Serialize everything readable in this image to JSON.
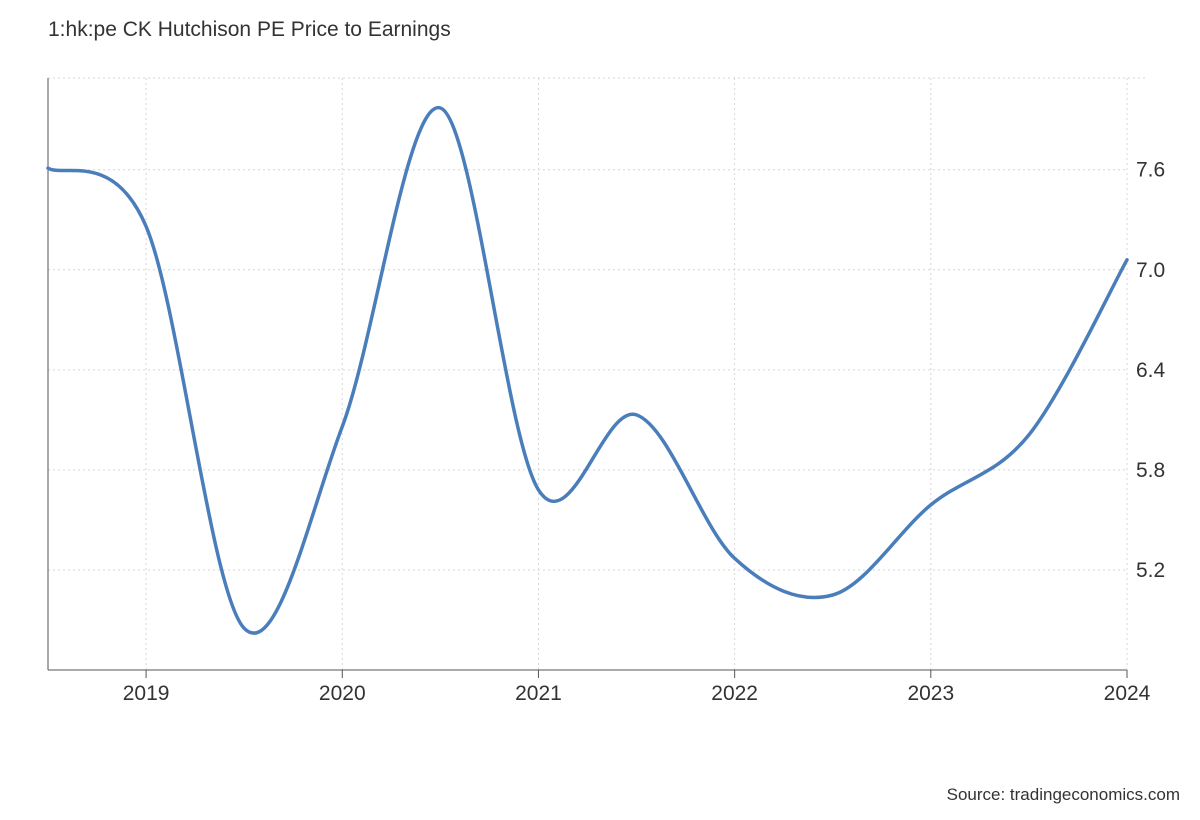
{
  "title": "1:hk:pe CK Hutchison PE Price to Earnings",
  "source": "Source: tradingeconomics.com",
  "chart_data": {
    "type": "line",
    "title": "1:hk:pe CK Hutchison PE Price to Earnings",
    "xlabel": "",
    "ylabel": "",
    "x_ticks": [
      "2019",
      "2020",
      "2021",
      "2022",
      "2023",
      "2024"
    ],
    "y_ticks": [
      "5.2",
      "5.8",
      "6.4",
      "7.0",
      "7.6"
    ],
    "xlim": [
      2018.5,
      2024.0
    ],
    "ylim": [
      4.6,
      8.15
    ],
    "grid": true,
    "line_color": "#4a7ebb",
    "series": [
      {
        "x": [
          2018.5,
          2019.0,
          2019.5,
          2020.0,
          2020.5,
          2021.0,
          2021.5,
          2022.0,
          2022.5,
          2023.0,
          2023.5,
          2024.0
        ],
        "y": [
          7.61,
          7.26,
          4.85,
          6.06,
          7.97,
          5.68,
          6.13,
          5.27,
          5.05,
          5.59,
          6.01,
          7.06
        ]
      }
    ]
  }
}
